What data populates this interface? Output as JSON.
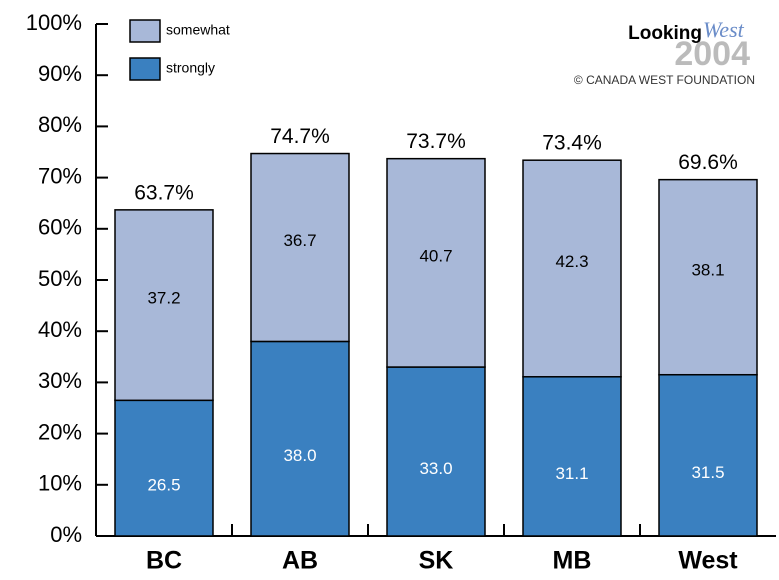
{
  "chart_data": {
    "type": "stacked-bar",
    "categories": [
      "BC",
      "AB",
      "SK",
      "MB",
      "West"
    ],
    "series": [
      {
        "name": "strongly",
        "color": "#3a80c0",
        "values": [
          26.5,
          38.0,
          33.0,
          31.1,
          31.5
        ],
        "value_labels": [
          "26.5",
          "38.0",
          "33.0",
          "31.1",
          "31.5"
        ]
      },
      {
        "name": "somewhat",
        "color": "#a8b8d8",
        "values": [
          37.2,
          36.7,
          40.7,
          42.3,
          38.1
        ]
      }
    ],
    "totals": [
      63.7,
      74.7,
      73.7,
      73.4,
      69.6
    ],
    "totals_labels": [
      "63.7%",
      "74.7%",
      "73.7%",
      "73.4%",
      "69.6%"
    ],
    "ylim": [
      0,
      100
    ],
    "yticks": [
      {
        "value": 0,
        "label": "0%"
      },
      {
        "value": 10,
        "label": "10%"
      },
      {
        "value": 20,
        "label": "20%"
      },
      {
        "value": 30,
        "label": "30%"
      },
      {
        "value": 40,
        "label": "40%"
      },
      {
        "value": 50,
        "label": "50%"
      },
      {
        "value": 60,
        "label": "60%"
      },
      {
        "value": 70,
        "label": "70%"
      },
      {
        "value": 80,
        "label": "80%"
      },
      {
        "value": 90,
        "label": "90%"
      },
      {
        "value": 100,
        "label": "100%"
      }
    ],
    "logo": {
      "word": "Looking",
      "script": "West",
      "year": "2004",
      "credit": "© CANADA WEST FOUNDATION"
    }
  }
}
